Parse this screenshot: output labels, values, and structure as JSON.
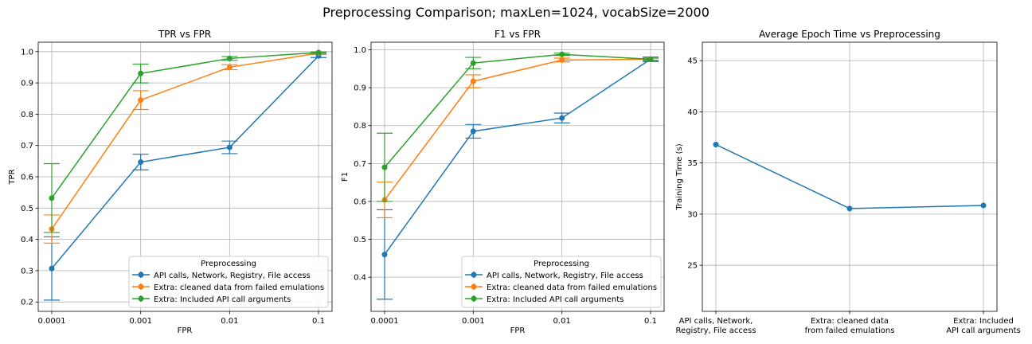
{
  "figure": {
    "suptitle": "Preprocessing Comparison; maxLen=1024, vocabSize=2000"
  },
  "colors": {
    "c0": "#1f77b4",
    "c1": "#ff7f0e",
    "c2": "#2ca02c",
    "grid": "#b0b0b0"
  },
  "chart_data": [
    {
      "type": "line",
      "title": "TPR vs FPR",
      "xlabel": "FPR",
      "ylabel": "TPR",
      "x": [
        "0.0001",
        "0.001",
        "0.01",
        "0.1"
      ],
      "ylim": [
        0.17,
        1.03
      ],
      "yticks": [
        "0.2",
        "0.3",
        "0.4",
        "0.5",
        "0.6",
        "0.7",
        "0.8",
        "0.9",
        "1.0"
      ],
      "grid": true,
      "error_bars": true,
      "legend": {
        "title": "Preprocessing",
        "placement": "lower right"
      },
      "series": [
        {
          "name": "API calls, Network, Registry, File access",
          "color": "#1f77b4",
          "values": [
            0.307,
            0.647,
            0.694,
            0.986
          ],
          "errors": [
            0.101,
            0.025,
            0.02,
            0.005
          ]
        },
        {
          "name": "Extra: cleaned data from failed emulations",
          "color": "#ff7f0e",
          "values": [
            0.433,
            0.845,
            0.95,
            0.995
          ],
          "errors": [
            0.045,
            0.03,
            0.008,
            0.003
          ]
        },
        {
          "name": "Extra: Included API call arguments",
          "color": "#2ca02c",
          "values": [
            0.532,
            0.93,
            0.978,
            0.997
          ],
          "errors": [
            0.11,
            0.03,
            0.006,
            0.002
          ]
        }
      ]
    },
    {
      "type": "line",
      "title": "F1 vs FPR",
      "xlabel": "FPR",
      "ylabel": "F1",
      "x": [
        "0.0001",
        "0.001",
        "0.01",
        "0.1"
      ],
      "ylim": [
        0.31,
        1.02
      ],
      "yticks": [
        "0.4",
        "0.5",
        "0.6",
        "0.7",
        "0.8",
        "0.9",
        "1.0"
      ],
      "grid": true,
      "error_bars": true,
      "legend": {
        "title": "Preprocessing",
        "placement": "lower right"
      },
      "series": [
        {
          "name": "API calls, Network, Registry, File access",
          "color": "#1f77b4",
          "values": [
            0.46,
            0.785,
            0.82,
            0.975
          ],
          "errors": [
            0.118,
            0.018,
            0.013,
            0.006
          ]
        },
        {
          "name": "Extra: cleaned data from failed emulations",
          "color": "#ff7f0e",
          "values": [
            0.604,
            0.917,
            0.973,
            0.975
          ],
          "errors": [
            0.047,
            0.017,
            0.005,
            0.003
          ]
        },
        {
          "name": "Extra: Included API call arguments",
          "color": "#2ca02c",
          "values": [
            0.69,
            0.965,
            0.988,
            0.975
          ],
          "errors": [
            0.09,
            0.015,
            0.003,
            0.003
          ]
        }
      ]
    },
    {
      "type": "line",
      "title": "Average Epoch Time vs Preprocessing",
      "xlabel": "",
      "ylabel": "Training Time (s)",
      "x": [
        "API calls, Network,\nRegistry, File access",
        "Extra: cleaned data\nfrom failed emulations",
        "Extra: Included\nAPI call arguments"
      ],
      "ylim": [
        20.5,
        46.8
      ],
      "yticks": [
        "25",
        "30",
        "35",
        "40",
        "45"
      ],
      "grid": true,
      "series": [
        {
          "color": "#1f77b4",
          "values": [
            36.8,
            30.55,
            30.85
          ]
        }
      ]
    }
  ]
}
